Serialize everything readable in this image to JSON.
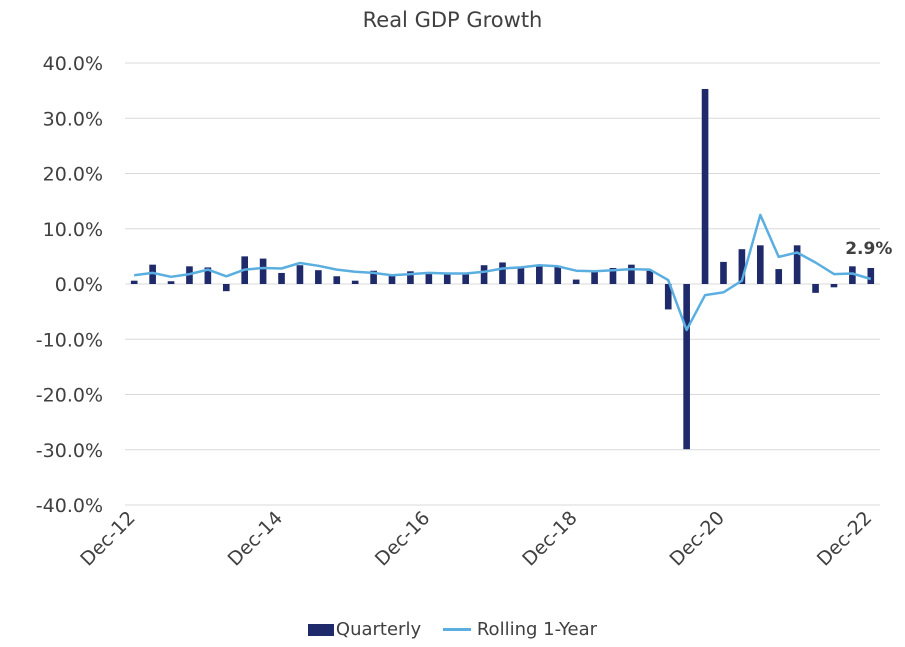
{
  "chart_data": {
    "type": "bar",
    "title": "Real GDP Growth",
    "xlabel": "",
    "ylabel": "",
    "ylim": [
      -40,
      40
    ],
    "y_ticks": [
      40,
      30,
      20,
      10,
      0,
      -10,
      -20,
      -30,
      -40
    ],
    "y_tick_labels": [
      "40.0%",
      "30.0%",
      "20.0%",
      "10.0%",
      "0.0%",
      "-10.0%",
      "-20.0%",
      "-30.0%",
      "-40.0%"
    ],
    "x_tick_labels": [
      {
        "index": 0,
        "label": "Dec-12"
      },
      {
        "index": 8,
        "label": "Dec-14"
      },
      {
        "index": 16,
        "label": "Dec-16"
      },
      {
        "index": 24,
        "label": "Dec-18"
      },
      {
        "index": 32,
        "label": "Dec-20"
      },
      {
        "index": 40,
        "label": "Dec-22"
      }
    ],
    "grid": true,
    "legend_position": "bottom",
    "annotation": {
      "text": "2.9%",
      "index": 40
    },
    "colors": {
      "quarterly": "#1f2a6b",
      "rolling": "#5aaee0",
      "grid": "#d9d9d9",
      "text": "#404040"
    },
    "series": [
      {
        "name": "Quarterly",
        "type": "bar",
        "values": [
          0.6,
          3.5,
          0.5,
          3.2,
          3.0,
          -1.3,
          5.0,
          4.6,
          2.0,
          3.4,
          2.5,
          1.4,
          0.6,
          2.4,
          1.5,
          2.3,
          2.0,
          1.9,
          1.8,
          3.4,
          3.9,
          3.0,
          3.3,
          3.3,
          0.8,
          2.3,
          2.9,
          3.5,
          2.4,
          -4.6,
          -29.9,
          35.3,
          4.0,
          6.3,
          7.0,
          2.7,
          7.0,
          -1.6,
          -0.6,
          3.2,
          2.9
        ]
      },
      {
        "name": "Rolling 1-Year",
        "type": "line",
        "values": [
          1.6,
          2.0,
          1.3,
          1.8,
          2.6,
          1.4,
          2.6,
          2.9,
          2.8,
          3.8,
          3.3,
          2.6,
          2.2,
          2.0,
          1.6,
          1.8,
          2.0,
          1.9,
          1.9,
          2.2,
          2.8,
          3.0,
          3.4,
          3.2,
          2.4,
          2.3,
          2.5,
          2.7,
          2.6,
          0.7,
          -8.3,
          -2.0,
          -1.5,
          0.6,
          12.5,
          4.9,
          5.7,
          3.9,
          1.8,
          1.9,
          0.9
        ]
      }
    ]
  },
  "legend": {
    "quarterly": "Quarterly",
    "rolling": "Rolling 1-Year"
  }
}
